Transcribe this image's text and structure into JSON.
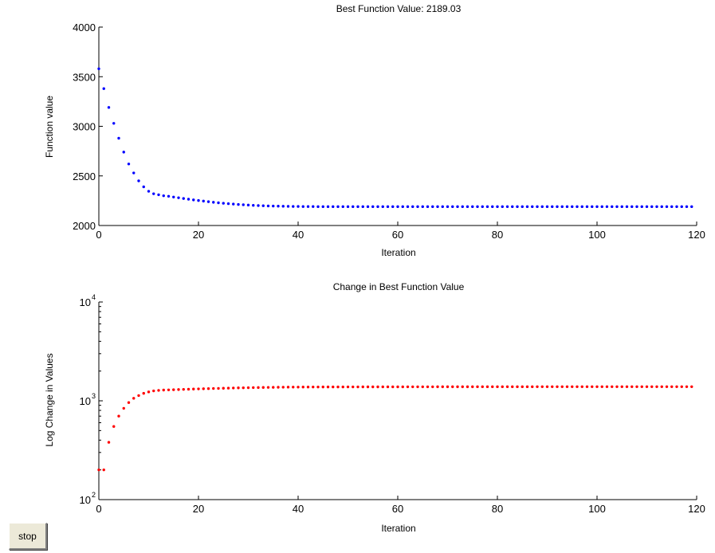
{
  "chart_data": [
    {
      "type": "scatter",
      "title": "Best Function Value: 2189.03",
      "xlabel": "Iteration",
      "ylabel": "Function value",
      "xlim": [
        0,
        120
      ],
      "ylim": [
        2000,
        4000
      ],
      "xticks": [
        "0",
        "20",
        "40",
        "60",
        "80",
        "100",
        "120"
      ],
      "yticks": [
        "2000",
        "2500",
        "3000",
        "3500",
        "4000"
      ],
      "color": "#0000ff",
      "series": [
        {
          "x": [
            0,
            1,
            2,
            3,
            4,
            5,
            6,
            7,
            8,
            9,
            10,
            11,
            12,
            13,
            14,
            15,
            16,
            17,
            18,
            19,
            20,
            21,
            22,
            23,
            24,
            25,
            26,
            27,
            28,
            29,
            30,
            31,
            32,
            33,
            34,
            35,
            36,
            37,
            38,
            39,
            40,
            41,
            42,
            43,
            44,
            45,
            46,
            47,
            48,
            49,
            50,
            51,
            52,
            53,
            54,
            55,
            56,
            57,
            58,
            59,
            60,
            61,
            62,
            63,
            64,
            65,
            66,
            67,
            68,
            69,
            70,
            71,
            72,
            73,
            74,
            75,
            76,
            77,
            78,
            79,
            80,
            81,
            82,
            83,
            84,
            85,
            86,
            87,
            88,
            89,
            90,
            91,
            92,
            93,
            94,
            95,
            96,
            97,
            98,
            99,
            100,
            101,
            102,
            103,
            104,
            105,
            106,
            107,
            108,
            109,
            110,
            111,
            112,
            113,
            114,
            115,
            116,
            117,
            118,
            119
          ],
          "y": [
            3580,
            3380,
            3190,
            3030,
            2880,
            2740,
            2620,
            2530,
            2450,
            2390,
            2345,
            2320,
            2310,
            2300,
            2295,
            2287,
            2280,
            2272,
            2265,
            2258,
            2252,
            2246,
            2240,
            2234,
            2229,
            2224,
            2220,
            2216,
            2212,
            2209,
            2206,
            2203,
            2201,
            2199,
            2197,
            2196,
            2195,
            2194,
            2193,
            2192,
            2192,
            2191,
            2191,
            2191,
            2190,
            2190,
            2190,
            2190,
            2190,
            2190,
            2190,
            2190,
            2190,
            2190,
            2190,
            2190,
            2190,
            2190,
            2190,
            2190,
            2190,
            2190,
            2190,
            2190,
            2190,
            2190,
            2190,
            2190,
            2190,
            2190,
            2190,
            2190,
            2190,
            2190,
            2190,
            2190,
            2190,
            2190,
            2190,
            2190,
            2190,
            2190,
            2190,
            2190,
            2190,
            2190,
            2190,
            2190,
            2190,
            2190,
            2190,
            2190,
            2190,
            2190,
            2190,
            2190,
            2190,
            2190,
            2190,
            2190,
            2190,
            2190,
            2190,
            2190,
            2190,
            2190,
            2190,
            2190,
            2190,
            2190,
            2190,
            2190,
            2190,
            2190,
            2190,
            2190,
            2190,
            2190,
            2190,
            2190
          ]
        }
      ]
    },
    {
      "type": "scatter",
      "title": "Change in Best Function Value",
      "xlabel": "Iteration",
      "ylabel": "Log Change in Values",
      "xlim": [
        0,
        120
      ],
      "ylim": [
        100,
        10000
      ],
      "yscale": "log",
      "xticks": [
        "0",
        "20",
        "40",
        "60",
        "80",
        "100",
        "120"
      ],
      "yticks": [
        {
          "base": "10",
          "exp": "2"
        },
        {
          "base": "10",
          "exp": "3"
        },
        {
          "base": "10",
          "exp": "4"
        }
      ],
      "color": "#ff0000",
      "series": [
        {
          "x": [
            0,
            1,
            2,
            3,
            4,
            5,
            6,
            7,
            8,
            9,
            10,
            11,
            12,
            13,
            14,
            15,
            16,
            17,
            18,
            19,
            20,
            21,
            22,
            23,
            24,
            25,
            26,
            27,
            28,
            29,
            30,
            31,
            32,
            33,
            34,
            35,
            36,
            37,
            38,
            39,
            40,
            41,
            42,
            43,
            44,
            45,
            46,
            47,
            48,
            49,
            50,
            51,
            52,
            53,
            54,
            55,
            56,
            57,
            58,
            59,
            60,
            61,
            62,
            63,
            64,
            65,
            66,
            67,
            68,
            69,
            70,
            71,
            72,
            73,
            74,
            75,
            76,
            77,
            78,
            79,
            80,
            81,
            82,
            83,
            84,
            85,
            86,
            87,
            88,
            89,
            90,
            91,
            92,
            93,
            94,
            95,
            96,
            97,
            98,
            99,
            100,
            101,
            102,
            103,
            104,
            105,
            106,
            107,
            108,
            109,
            110,
            111,
            112,
            113,
            114,
            115,
            116,
            117,
            118,
            119
          ],
          "y": [
            200,
            200,
            380,
            550,
            700,
            840,
            960,
            1060,
            1130,
            1190,
            1230,
            1260,
            1275,
            1285,
            1290,
            1295,
            1300,
            1305,
            1310,
            1315,
            1320,
            1324,
            1328,
            1332,
            1336,
            1340,
            1344,
            1348,
            1352,
            1355,
            1358,
            1361,
            1363,
            1365,
            1367,
            1369,
            1371,
            1373,
            1375,
            1376,
            1377,
            1378,
            1379,
            1380,
            1380,
            1381,
            1381,
            1382,
            1382,
            1382,
            1383,
            1383,
            1383,
            1384,
            1384,
            1384,
            1384,
            1385,
            1385,
            1385,
            1385,
            1385,
            1386,
            1386,
            1386,
            1386,
            1386,
            1386,
            1387,
            1387,
            1387,
            1387,
            1387,
            1387,
            1387,
            1387,
            1388,
            1388,
            1388,
            1388,
            1388,
            1388,
            1388,
            1388,
            1388,
            1388,
            1388,
            1388,
            1389,
            1389,
            1389,
            1389,
            1389,
            1389,
            1389,
            1389,
            1389,
            1389,
            1389,
            1389,
            1389,
            1389,
            1389,
            1389,
            1389,
            1389,
            1389,
            1389,
            1389,
            1389,
            1389,
            1389,
            1389,
            1389,
            1389,
            1389,
            1389,
            1389,
            1389,
            1389
          ]
        }
      ]
    }
  ],
  "controls": {
    "stop_label": "stop"
  }
}
